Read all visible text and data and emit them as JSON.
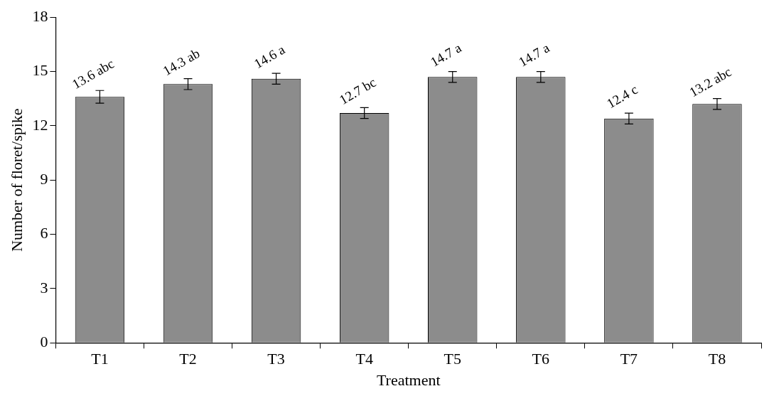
{
  "chart_data": {
    "type": "bar",
    "xlabel": "Treatment",
    "ylabel": "Number of floret/spike",
    "categories": [
      "T1",
      "T2",
      "T3",
      "T4",
      "T5",
      "T6",
      "T7",
      "T8"
    ],
    "values": [
      13.6,
      14.3,
      14.6,
      12.7,
      14.7,
      14.7,
      12.4,
      13.2
    ],
    "errors": [
      0.35,
      0.3,
      0.3,
      0.3,
      0.3,
      0.3,
      0.3,
      0.3
    ],
    "value_labels": [
      "13.6 abc",
      "14.3 ab",
      "14.6 a",
      "12.7 bc",
      "14.7 a",
      "14.7 a",
      "12.4 c",
      "13.2 abc"
    ],
    "color": "#8c8c8c",
    "ylim": [
      0,
      18
    ],
    "yticks": [
      0,
      3,
      6,
      9,
      12,
      15,
      18
    ],
    "legend": false
  }
}
